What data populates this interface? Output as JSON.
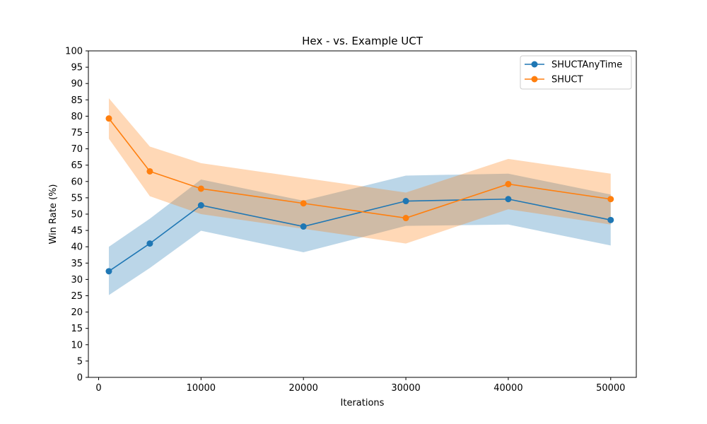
{
  "chart_data": {
    "type": "line",
    "title": "Hex - vs. Example UCT",
    "xlabel": "Iterations",
    "ylabel": "Win Rate (%)",
    "x": [
      1000,
      5000,
      10000,
      20000,
      30000,
      40000,
      50000
    ],
    "xlim": [
      -1000,
      52500
    ],
    "ylim": [
      0,
      100
    ],
    "x_ticks": [
      "0",
      "10000",
      "20000",
      "30000",
      "40000",
      "50000"
    ],
    "y_ticks": [
      "0",
      "5",
      "10",
      "15",
      "20",
      "25",
      "30",
      "35",
      "40",
      "45",
      "50",
      "55",
      "60",
      "65",
      "70",
      "75",
      "80",
      "85",
      "90",
      "95",
      "100"
    ],
    "grid": false,
    "legend_position": "top-right",
    "series": [
      {
        "name": "SHUCTAnyTime",
        "color": "#1f77b4",
        "band_color": "#1f77b4",
        "values": [
          32.5,
          41,
          52.7,
          46.2,
          54,
          54.6,
          48.2
        ],
        "lower": [
          25.2,
          33.5,
          44.9,
          38.3,
          46.4,
          46.8,
          40.4
        ],
        "upper": [
          40.0,
          48.6,
          60.6,
          54.1,
          61.8,
          62.4,
          56.0
        ]
      },
      {
        "name": "SHUCT",
        "color": "#ff7f0e",
        "band_color": "#ff7f0e",
        "values": [
          79.3,
          63.1,
          57.8,
          53.3,
          48.8,
          59.2,
          54.6
        ],
        "lower": [
          73.1,
          55.5,
          50.0,
          45.5,
          41.0,
          51.5,
          46.8
        ],
        "upper": [
          85.5,
          70.7,
          65.6,
          61.1,
          56.6,
          66.9,
          62.4
        ]
      }
    ]
  }
}
